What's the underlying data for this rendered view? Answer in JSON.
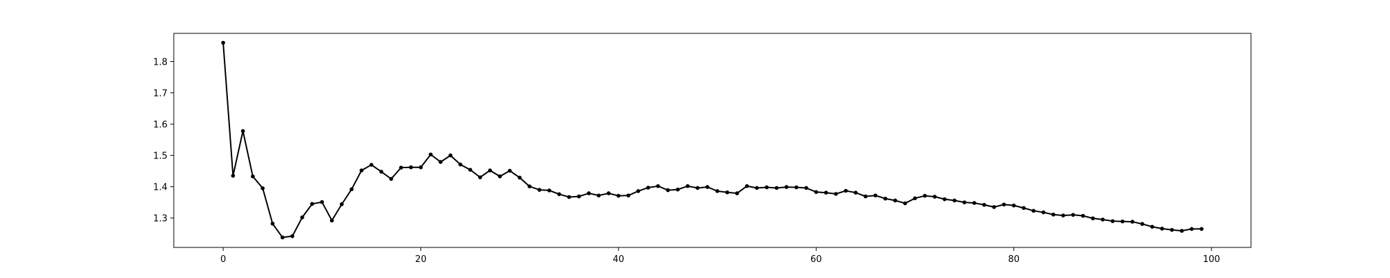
{
  "chart_data": {
    "type": "line",
    "title": "",
    "xlabel": "",
    "ylabel": "",
    "xlim": [
      -5,
      104
    ],
    "ylim": [
      1.206,
      1.89
    ],
    "xticks": [
      0,
      20,
      40,
      60,
      80,
      100
    ],
    "yticks": [
      1.3,
      1.4,
      1.5,
      1.6,
      1.7,
      1.8
    ],
    "xtick_labels": [
      "0",
      "20",
      "40",
      "60",
      "80",
      "100"
    ],
    "ytick_labels": [
      "1.3",
      "1.4",
      "1.5",
      "1.6",
      "1.7",
      "1.8"
    ],
    "grid": false,
    "line_color": "#000000",
    "marker": "circle",
    "series": [
      {
        "x": [
          0,
          1,
          2,
          3,
          4,
          5,
          6,
          7,
          8,
          9,
          10,
          11,
          12,
          13,
          14,
          15,
          16,
          17,
          18,
          19,
          20,
          21,
          22,
          23,
          24,
          25,
          26,
          27,
          28,
          29,
          30,
          31,
          32,
          33,
          34,
          35,
          36,
          37,
          38,
          39,
          40,
          41,
          42,
          43,
          44,
          45,
          46,
          47,
          48,
          49,
          50,
          51,
          52,
          53,
          54,
          55,
          56,
          57,
          58,
          59,
          60,
          61,
          62,
          63,
          64,
          65,
          66,
          67,
          68,
          69,
          70,
          71,
          72,
          73,
          74,
          75,
          76,
          77,
          78,
          79,
          80,
          81,
          82,
          83,
          84,
          85,
          86,
          87,
          88,
          89,
          90,
          91,
          92,
          93,
          94,
          95,
          96,
          97,
          98,
          99
        ],
        "y": [
          1.86,
          1.435,
          1.578,
          1.433,
          1.395,
          1.282,
          1.238,
          1.242,
          1.302,
          1.345,
          1.351,
          1.292,
          1.344,
          1.392,
          1.452,
          1.47,
          1.448,
          1.425,
          1.461,
          1.462,
          1.462,
          1.503,
          1.479,
          1.5,
          1.471,
          1.454,
          1.43,
          1.452,
          1.433,
          1.451,
          1.429,
          1.401,
          1.39,
          1.388,
          1.376,
          1.367,
          1.369,
          1.379,
          1.372,
          1.379,
          1.371,
          1.372,
          1.386,
          1.397,
          1.402,
          1.389,
          1.391,
          1.402,
          1.396,
          1.399,
          1.386,
          1.382,
          1.379,
          1.402,
          1.396,
          1.398,
          1.396,
          1.399,
          1.398,
          1.396,
          1.383,
          1.381,
          1.377,
          1.387,
          1.381,
          1.369,
          1.372,
          1.362,
          1.356,
          1.347,
          1.363,
          1.371,
          1.368,
          1.36,
          1.356,
          1.35,
          1.348,
          1.342,
          1.335,
          1.343,
          1.34,
          1.332,
          1.323,
          1.318,
          1.311,
          1.308,
          1.31,
          1.307,
          1.299,
          1.295,
          1.29,
          1.289,
          1.288,
          1.281,
          1.272,
          1.266,
          1.262,
          1.259,
          1.265,
          1.265
        ]
      }
    ]
  }
}
